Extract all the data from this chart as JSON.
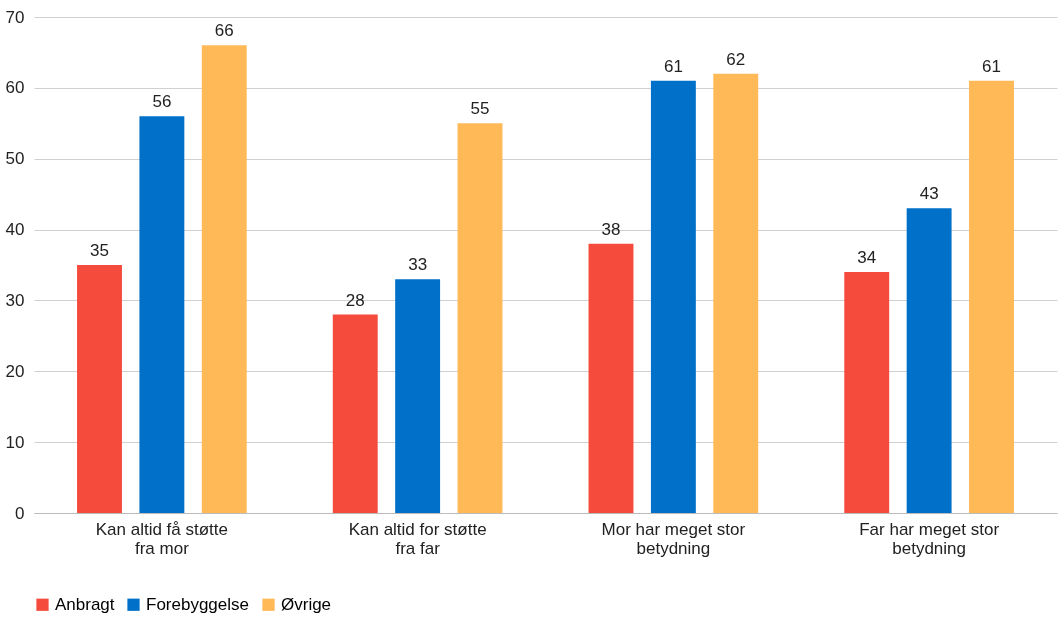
{
  "chart_data": {
    "type": "bar",
    "categories": [
      "Kan altid få støtte fra mor",
      "Kan altid for støtte fra far",
      "Mor har meget stor betydning",
      "Far har meget stor betydning"
    ],
    "series": [
      {
        "name": "Anbragt",
        "color": "#f44b3c",
        "values": [
          35,
          28,
          38,
          34
        ]
      },
      {
        "name": "Forebyggelse",
        "color": "#0070c8",
        "values": [
          56,
          33,
          61,
          43
        ]
      },
      {
        "name": "Øvrige",
        "color": "#ffb957",
        "values": [
          66,
          55,
          62,
          61
        ]
      }
    ],
    "ylim": [
      0,
      70
    ],
    "yticks": [
      0,
      10,
      20,
      30,
      40,
      50,
      60,
      70
    ],
    "grid": "y",
    "legend": "bottom",
    "data_labels": true
  }
}
